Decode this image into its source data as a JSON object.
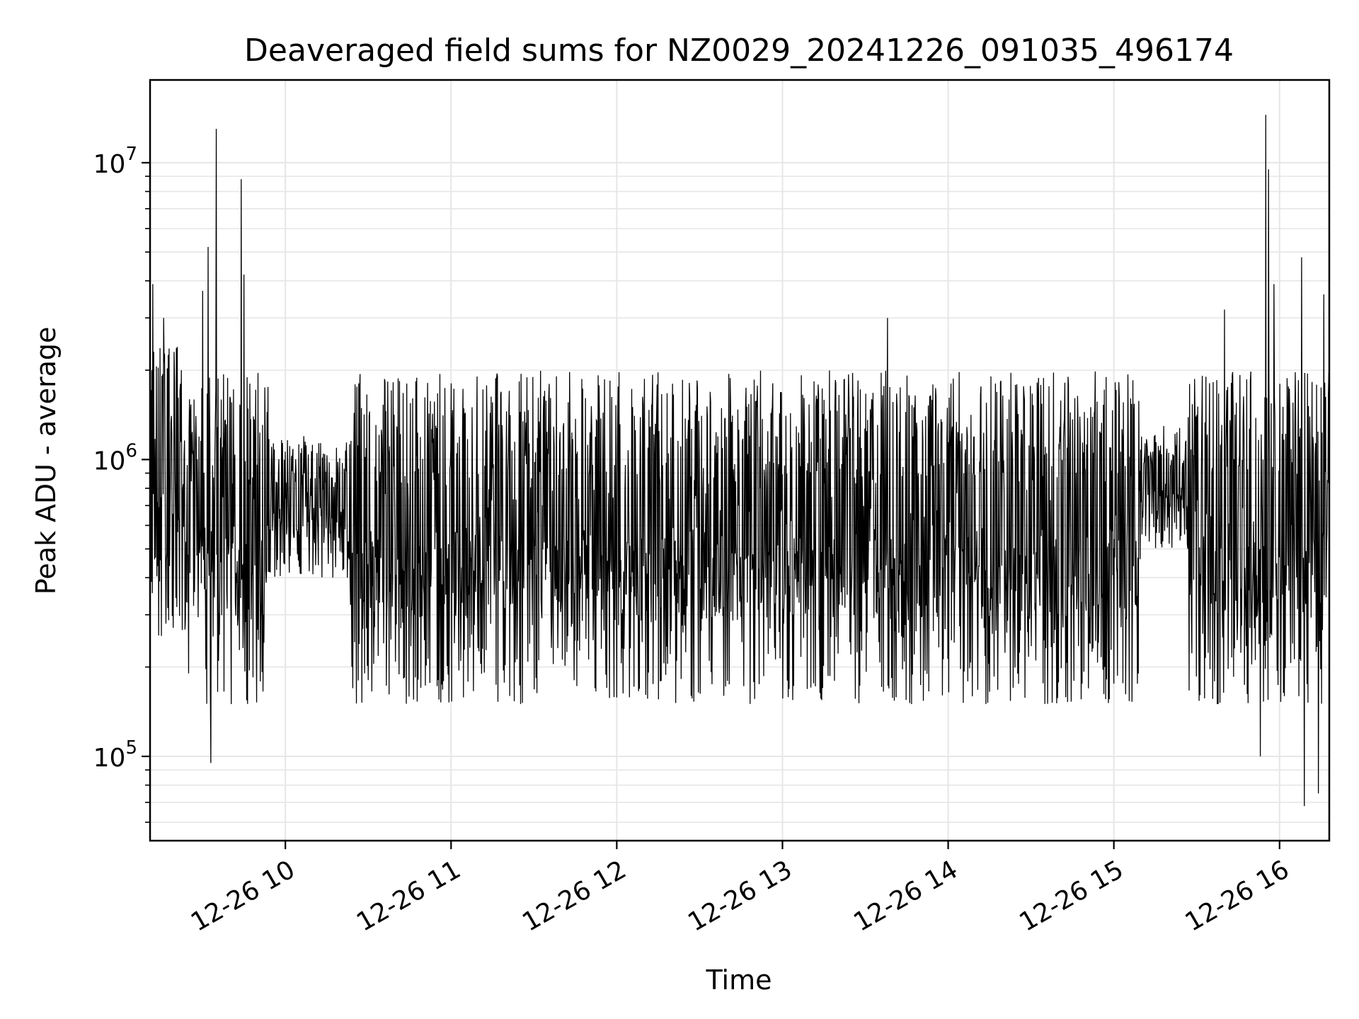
{
  "chart_data": {
    "type": "line",
    "title": "Deaveraged field sums for NZ0029_20241226_091035_496174",
    "xlabel": "Time",
    "ylabel": "Peak ADU - average",
    "yscale": "log",
    "ylim": [
      52000,
      19000000
    ],
    "xlim": [
      "2024-12-26 09:11:00",
      "2024-12-26 16:18:00"
    ],
    "grid": true,
    "line_color": "#000000",
    "grid_color": "#e6e6e6",
    "x_ticks": [
      {
        "t": "2024-12-26 10:00",
        "label": "12-26 10"
      },
      {
        "t": "2024-12-26 11:00",
        "label": "12-26 11"
      },
      {
        "t": "2024-12-26 12:00",
        "label": "12-26 12"
      },
      {
        "t": "2024-12-26 13:00",
        "label": "12-26 13"
      },
      {
        "t": "2024-12-26 14:00",
        "label": "12-26 14"
      },
      {
        "t": "2024-12-26 15:00",
        "label": "12-26 15"
      },
      {
        "t": "2024-12-26 16:00",
        "label": "12-26 16"
      }
    ],
    "y_ticks": [
      {
        "value": 100000,
        "base": "10",
        "exp": "5"
      },
      {
        "value": 1000000,
        "base": "10",
        "exp": "6"
      },
      {
        "value": 10000000,
        "base": "10",
        "exp": "7"
      }
    ],
    "typical_range": [
      150000,
      2000000
    ],
    "notable_points": [
      {
        "t": "2024-12-26 09:11",
        "y": 150000
      },
      {
        "t": "2024-12-26 09:12",
        "y": 3900000
      },
      {
        "t": "2024-12-26 09:16",
        "y": 3000000
      },
      {
        "t": "2024-12-26 09:22",
        "y": 1800000
      },
      {
        "t": "2024-12-26 09:30",
        "y": 3700000
      },
      {
        "t": "2024-12-26 09:32",
        "y": 5200000
      },
      {
        "t": "2024-12-26 09:33",
        "y": 95000
      },
      {
        "t": "2024-12-26 09:35",
        "y": 13000000
      },
      {
        "t": "2024-12-26 09:40",
        "y": 1600000
      },
      {
        "t": "2024-12-26 09:44",
        "y": 8800000
      },
      {
        "t": "2024-12-26 09:45",
        "y": 4200000
      },
      {
        "t": "2024-12-26 13:38",
        "y": 3000000
      },
      {
        "t": "2024-12-26 15:40",
        "y": 3200000
      },
      {
        "t": "2024-12-26 15:53",
        "y": 100000
      },
      {
        "t": "2024-12-26 15:55",
        "y": 14500000
      },
      {
        "t": "2024-12-26 15:56",
        "y": 9500000
      },
      {
        "t": "2024-12-26 15:58",
        "y": 3900000
      },
      {
        "t": "2024-12-26 16:08",
        "y": 4800000
      },
      {
        "t": "2024-12-26 16:09",
        "y": 68000
      },
      {
        "t": "2024-12-26 16:14",
        "y": 75000
      },
      {
        "t": "2024-12-26 16:16",
        "y": 3600000
      }
    ]
  }
}
